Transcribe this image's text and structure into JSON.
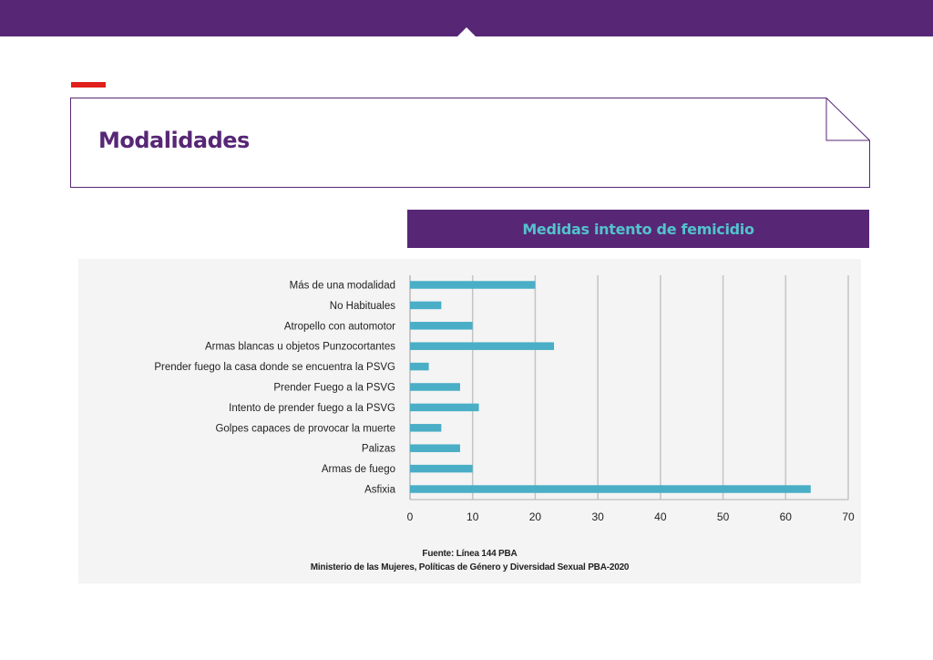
{
  "page": {
    "section_title": "Modalidades",
    "colors": {
      "brand_purple": "#572776",
      "accent_red": "#e0201c",
      "bar_teal": "#4aaec6",
      "title_teal": "#52c3cc"
    }
  },
  "chart_data": {
    "type": "bar",
    "orientation": "horizontal",
    "title": "Medidas intento de femicidio",
    "categories": [
      "Más de una modalidad",
      "No Habituales",
      "Atropello con automotor",
      "Armas blancas  u objetos Punzocortantes",
      "Prender fuego la casa donde se encuentra la PSVG",
      "Prender Fuego a la PSVG",
      "Intento de prender fuego a la PSVG",
      "Golpes capaces de provocar la muerte",
      "Palizas",
      "Armas de fuego",
      "Asfixia"
    ],
    "values": [
      20,
      5,
      10,
      23,
      3,
      8,
      11,
      5,
      8,
      10,
      64
    ],
    "xlim": [
      0,
      70
    ],
    "xticks": [
      0,
      10,
      20,
      30,
      40,
      50,
      60,
      70
    ],
    "grid": "vertical",
    "source": [
      "Fuente: Línea 144 PBA",
      "Ministerio de las Mujeres, Políticas de Género y Diversidad Sexual PBA-2020"
    ]
  }
}
